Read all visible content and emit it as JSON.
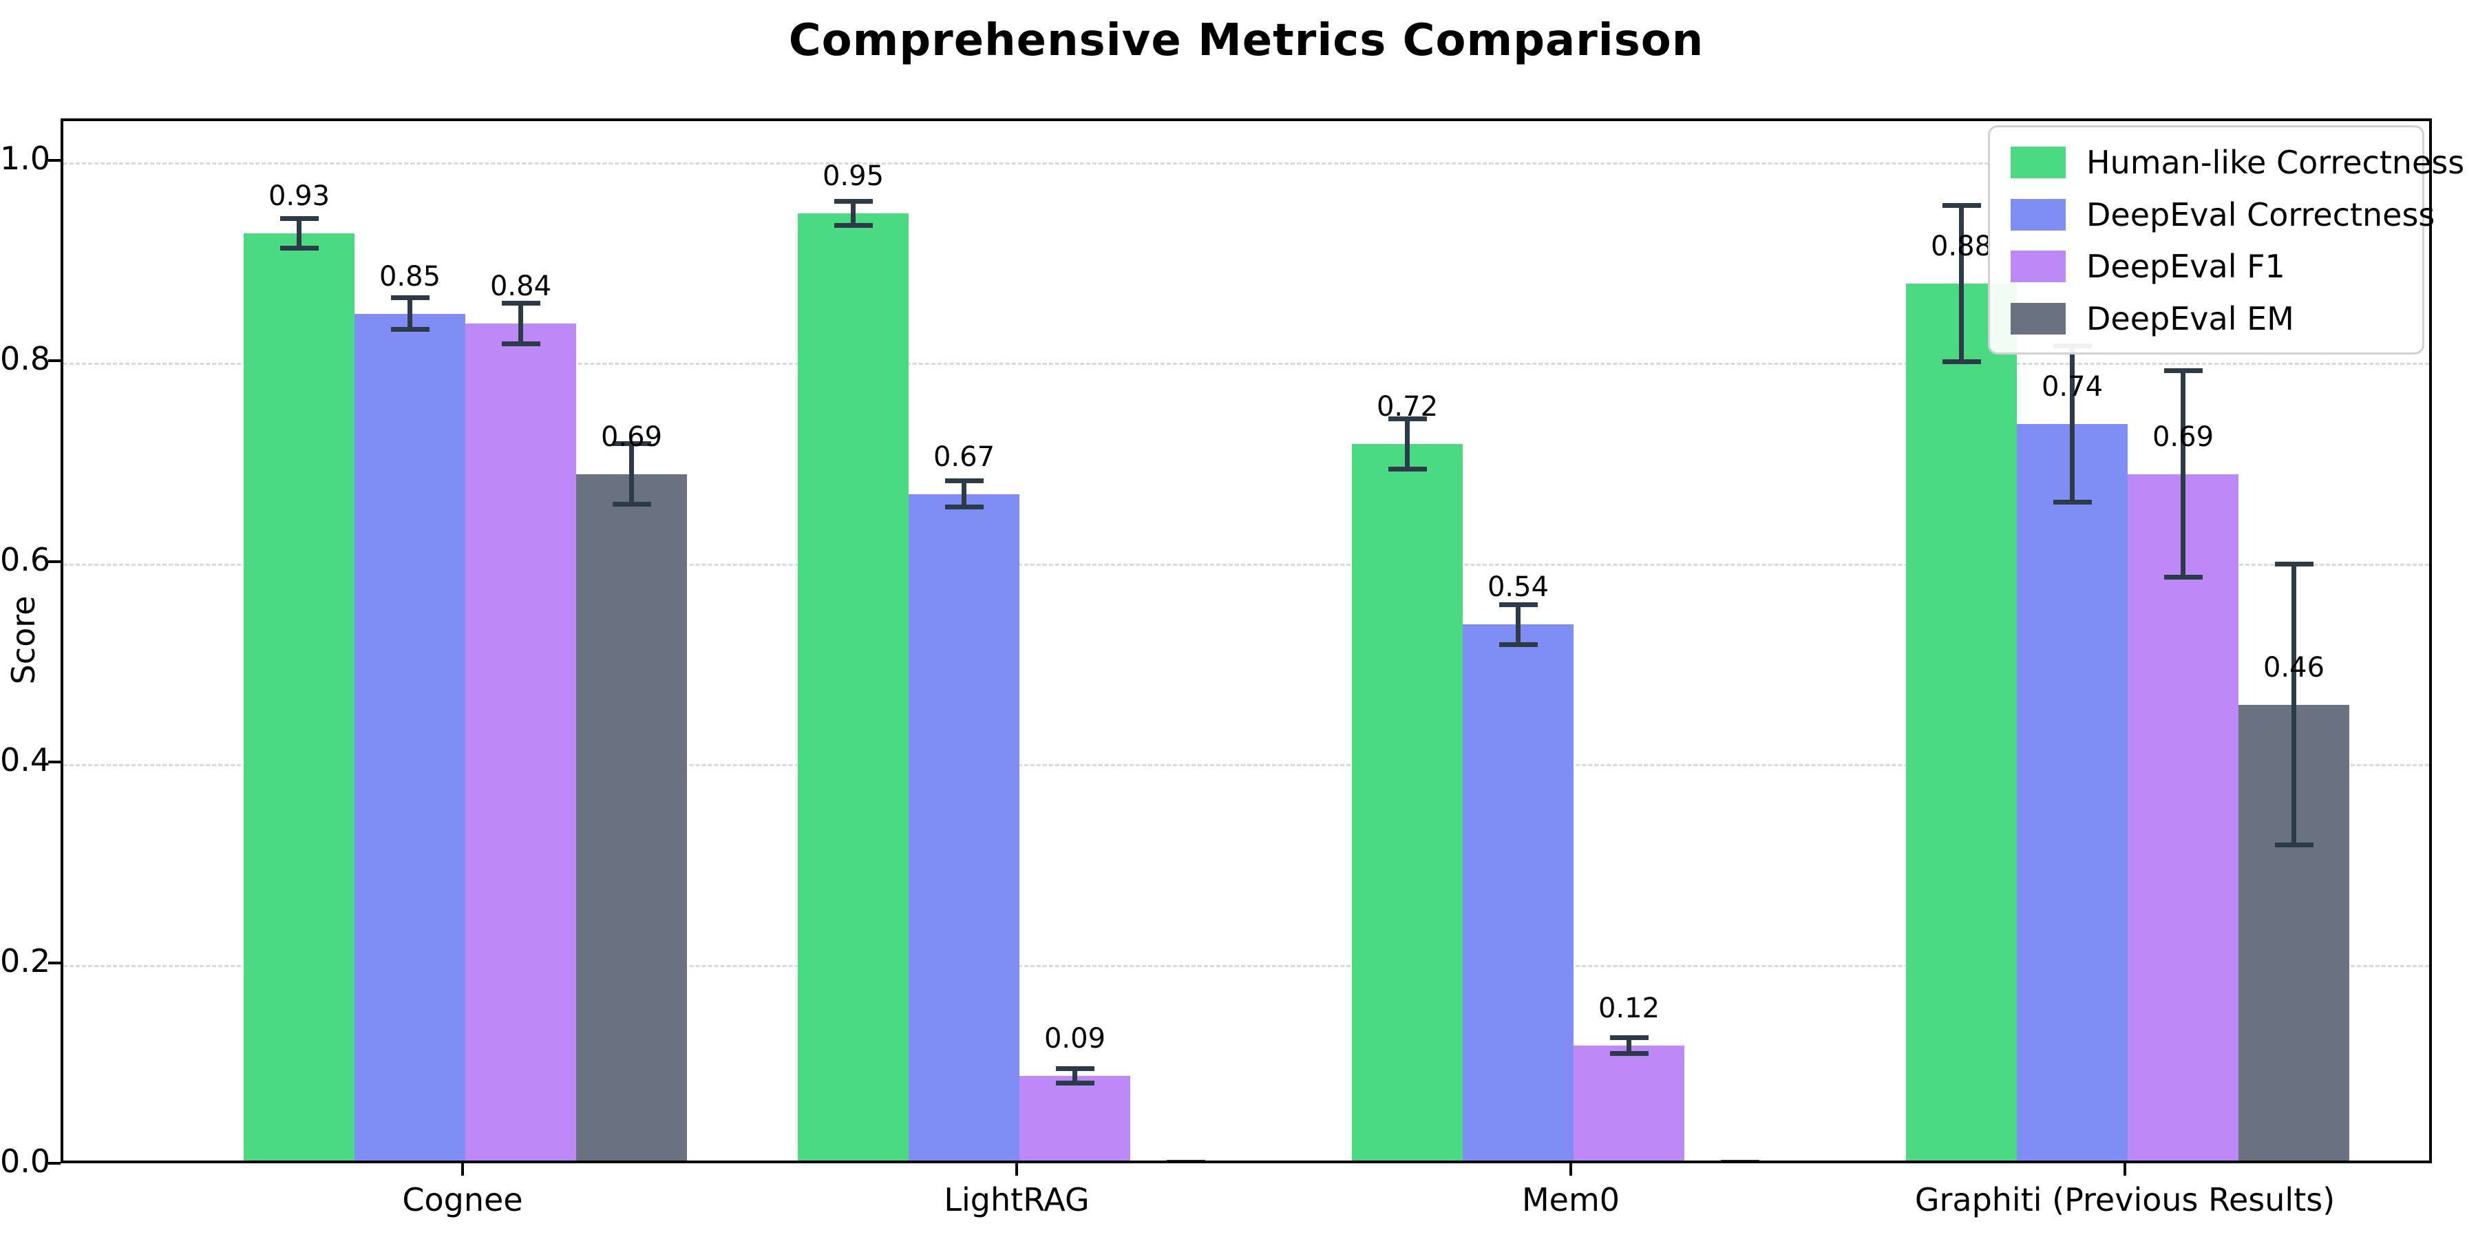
{
  "chart_data": {
    "type": "bar",
    "title": "Comprehensive Metrics Comparison",
    "xlabel": "",
    "ylabel": "Score",
    "categories": [
      "Cognee",
      "LightRAG",
      "Mem0",
      "Graphiti (Previous Results)"
    ],
    "series": [
      {
        "name": "Human-like Correctness",
        "color": "#4bd981",
        "values": [
          0.93,
          0.95,
          0.72,
          0.88
        ],
        "errors": [
          0.015,
          0.012,
          0.025,
          0.078
        ]
      },
      {
        "name": "DeepEval Correctness",
        "color": "#7f8df5",
        "values": [
          0.85,
          0.67,
          0.54,
          0.74
        ],
        "errors": [
          0.016,
          0.013,
          0.02,
          0.078
        ]
      },
      {
        "name": "DeepEval F1",
        "color": "#bd89f6",
        "values": [
          0.84,
          0.09,
          0.12,
          0.69
        ],
        "errors": [
          0.02,
          0.007,
          0.008,
          0.103
        ]
      },
      {
        "name": "DeepEval EM",
        "color": "#6a7280",
        "values": [
          0.69,
          0.0,
          0.0,
          0.46
        ],
        "errors": [
          0.03,
          0.004,
          0.004,
          0.14
        ]
      }
    ],
    "value_label_format": "0.00",
    "ylim": [
      0.0,
      1.042
    ],
    "yticks": [
      0.0,
      0.2,
      0.4,
      0.6,
      0.8,
      1.0
    ],
    "ytick_labels": [
      "0.0",
      "0.2",
      "0.4",
      "0.6",
      "0.8",
      "1.0"
    ],
    "grid": "horizontal-dashed",
    "legend_position": "top-right",
    "error_bar_color": "#2d3a48"
  }
}
